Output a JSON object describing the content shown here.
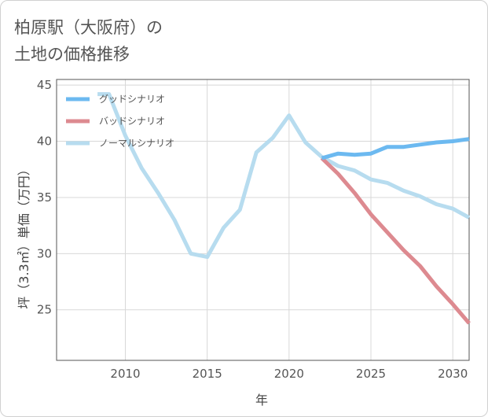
{
  "header": {
    "title_line1": "柏原駅（大阪府）の",
    "title_line2": "土地の価格推移"
  },
  "chart_data": {
    "type": "line",
    "xlabel": "年",
    "ylabel": "坪（3.3㎡）単価（万円）",
    "xlim": [
      2005.8,
      2031
    ],
    "ylim": [
      20.5,
      45.5
    ],
    "x_ticks": [
      2010,
      2015,
      2020,
      2025,
      2030
    ],
    "y_ticks": [
      25,
      30,
      35,
      40,
      45
    ],
    "grid": true,
    "legend_position": "top-left",
    "series": [
      {
        "name": "グッドシナリオ",
        "color": "#6cb9f0",
        "x": [
          2022,
          2023,
          2024,
          2025,
          2026,
          2027,
          2028,
          2029,
          2030,
          2031
        ],
        "y": [
          38.5,
          38.9,
          38.8,
          38.9,
          39.5,
          39.5,
          39.7,
          39.9,
          40.0,
          40.2
        ]
      },
      {
        "name": "バッドシナリオ",
        "color": "#dd8a90",
        "x": [
          2022,
          2023,
          2024,
          2025,
          2026,
          2027,
          2028,
          2029,
          2030,
          2031
        ],
        "y": [
          38.5,
          37.1,
          35.4,
          33.5,
          31.9,
          30.3,
          28.9,
          27.1,
          25.5,
          23.8
        ]
      },
      {
        "name": "ノーマルシナリオ",
        "color": "#b7dcef",
        "x": [
          2008.3,
          2009,
          2010,
          2011,
          2012,
          2013,
          2014,
          2015,
          2016,
          2017,
          2018,
          2019,
          2020,
          2021,
          2022,
          2023,
          2024,
          2025,
          2026,
          2027,
          2028,
          2029,
          2030,
          2031
        ],
        "y": [
          44.2,
          44.2,
          40.5,
          37.6,
          35.4,
          33.0,
          30.0,
          29.7,
          32.3,
          33.9,
          39.0,
          40.3,
          42.3,
          39.9,
          38.6,
          37.8,
          37.4,
          36.6,
          36.3,
          35.6,
          35.1,
          34.4,
          34.0,
          33.2
        ]
      }
    ]
  }
}
